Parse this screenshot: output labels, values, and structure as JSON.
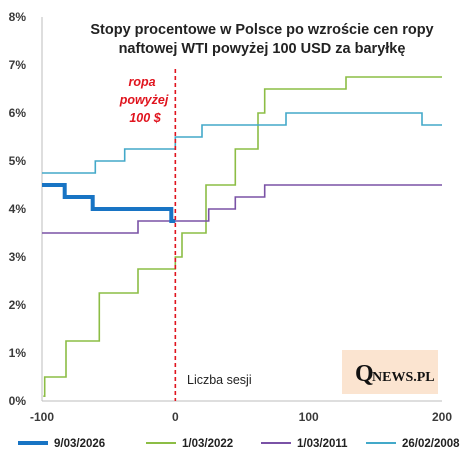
{
  "chart_data": {
    "type": "line",
    "title_lines": [
      "Stopy procentowe w Polsce po wzroście cen ropy",
      "naftowej WTI powyżej 100 USD za baryłkę"
    ],
    "xlabel": "Liczba sesji",
    "ylabel": "",
    "xlim": [
      -100,
      200
    ],
    "ylim": [
      0,
      8
    ],
    "x_ticks": [
      -100,
      0,
      100,
      200
    ],
    "y_ticks": [
      0,
      1,
      2,
      3,
      4,
      5,
      6,
      7,
      8
    ],
    "x_tick_labels": [
      "-100",
      "0",
      "100",
      "200"
    ],
    "y_tick_labels": [
      "0%",
      "1%",
      "2%",
      "3%",
      "4%",
      "5%",
      "6%",
      "7%",
      "8%"
    ],
    "grid": false,
    "legend_position": "bottom",
    "vline": {
      "x": 0,
      "color": "#e0141e",
      "label_lines": [
        "ropa",
        "powyżej",
        "100 $"
      ]
    },
    "series": [
      {
        "name": "9/03/2026",
        "color": "#1874c4",
        "width": 4,
        "points": [
          [
            -100,
            4.5
          ],
          [
            -83,
            4.5
          ],
          [
            -83,
            4.25
          ],
          [
            -62,
            4.25
          ],
          [
            -62,
            4.0
          ],
          [
            -3,
            4.0
          ],
          [
            -3,
            3.75
          ],
          [
            0,
            3.75
          ]
        ]
      },
      {
        "name": "1/03/2022",
        "color": "#8cbd45",
        "width": 1.6,
        "points": [
          [
            -99,
            0.1
          ],
          [
            -98,
            0.1
          ],
          [
            -98,
            0.5
          ],
          [
            -82,
            0.5
          ],
          [
            -82,
            1.25
          ],
          [
            -57,
            1.25
          ],
          [
            -57,
            2.25
          ],
          [
            -28,
            2.25
          ],
          [
            -28,
            2.75
          ],
          [
            -6,
            2.75
          ],
          [
            -6,
            2.75
          ],
          [
            0,
            2.75
          ],
          [
            0,
            3.0
          ],
          [
            5,
            3.0
          ],
          [
            5,
            3.5
          ],
          [
            23,
            3.5
          ],
          [
            23,
            4.5
          ],
          [
            45,
            4.5
          ],
          [
            45,
            5.25
          ],
          [
            62,
            5.25
          ],
          [
            62,
            6.0
          ],
          [
            67,
            6.0
          ],
          [
            67,
            6.5
          ],
          [
            128,
            6.5
          ],
          [
            128,
            6.75
          ],
          [
            200,
            6.75
          ]
        ]
      },
      {
        "name": "1/03/2011",
        "color": "#7a52a6",
        "width": 1.6,
        "points": [
          [
            -100,
            3.5
          ],
          [
            -28,
            3.5
          ],
          [
            -28,
            3.75
          ],
          [
            25,
            3.75
          ],
          [
            25,
            4.0
          ],
          [
            45,
            4.0
          ],
          [
            45,
            4.25
          ],
          [
            67,
            4.25
          ],
          [
            67,
            4.5
          ],
          [
            200,
            4.5
          ]
        ]
      },
      {
        "name": "26/02/2008",
        "color": "#43a9c9",
        "width": 1.6,
        "points": [
          [
            -100,
            4.75
          ],
          [
            -60,
            4.75
          ],
          [
            -60,
            5.0
          ],
          [
            -38,
            5.0
          ],
          [
            -38,
            5.25
          ],
          [
            -5,
            5.25
          ],
          [
            -5,
            5.25
          ],
          [
            0,
            5.25
          ],
          [
            0,
            5.5
          ],
          [
            20,
            5.5
          ],
          [
            20,
            5.75
          ],
          [
            83,
            5.75
          ],
          [
            83,
            6.0
          ],
          [
            185,
            6.0
          ],
          [
            185,
            5.75
          ],
          [
            200,
            5.75
          ]
        ]
      }
    ]
  },
  "logo": {
    "q": "Q",
    "rest": "NEWS.PL"
  }
}
